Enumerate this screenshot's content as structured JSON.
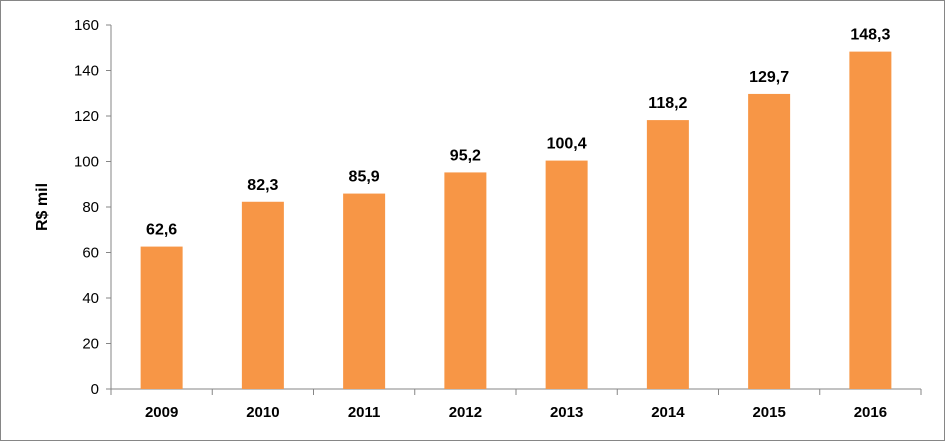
{
  "chart_data": {
    "type": "bar",
    "categories": [
      "2009",
      "2010",
      "2011",
      "2012",
      "2013",
      "2014",
      "2015",
      "2016"
    ],
    "values": [
      62.6,
      82.3,
      85.9,
      95.2,
      100.4,
      118.2,
      129.7,
      148.3
    ],
    "value_labels": [
      "62,6",
      "82,3",
      "85,9",
      "95,2",
      "100,4",
      "118,2",
      "129,7",
      "148,3"
    ],
    "title": "",
    "xlabel": "",
    "ylabel": "R$ mil",
    "ylim": [
      0,
      160
    ],
    "yticks": [
      0,
      20,
      40,
      60,
      80,
      100,
      120,
      140,
      160
    ],
    "grid": false,
    "legend": "none",
    "bar_color": "#F79646"
  }
}
